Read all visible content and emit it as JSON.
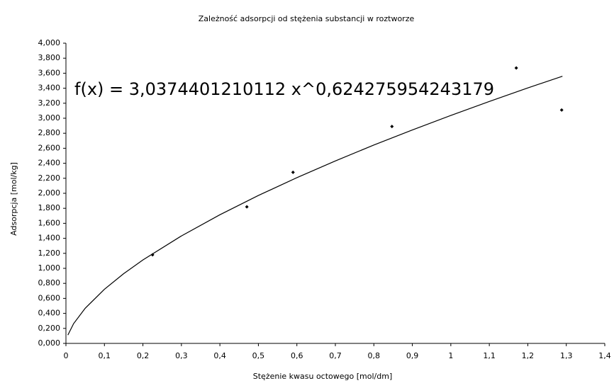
{
  "chart_data": {
    "type": "scatter",
    "title": "Zależność adsorpcji od stężenia substancji w roztworze",
    "xlabel": "Stężenie kwasu octowego [mol/dm]",
    "ylabel": "Adsorpcja [mol/kg]",
    "annotation": "f(x) = 3,0374401210112 x^0,624275954243179",
    "xlim": [
      0,
      1.4
    ],
    "ylim": [
      0,
      4
    ],
    "xticks": [
      0,
      {
        "value": 0.1,
        "label": "0,1"
      },
      {
        "value": 0.2,
        "label": "0,2"
      },
      {
        "value": 0.3,
        "label": "0,3"
      },
      {
        "value": 0.4,
        "label": "0,4"
      },
      {
        "value": 0.5,
        "label": "0,5"
      },
      {
        "value": 0.6,
        "label": "0,6"
      },
      {
        "value": 0.7,
        "label": "0,7"
      },
      {
        "value": 0.8,
        "label": "0,8"
      },
      {
        "value": 0.9,
        "label": "0,9"
      },
      1,
      {
        "value": 1.1,
        "label": "1,1"
      },
      {
        "value": 1.2,
        "label": "1,2"
      },
      {
        "value": 1.3,
        "label": "1,3"
      },
      {
        "value": 1.4,
        "label": "1,4"
      }
    ],
    "yticks": [
      {
        "value": 0,
        "label": "0,000"
      },
      {
        "value": 0.2,
        "label": "0,200"
      },
      {
        "value": 0.4,
        "label": "0,400"
      },
      {
        "value": 0.6,
        "label": "0,600"
      },
      {
        "value": 0.8,
        "label": "0,800"
      },
      {
        "value": 1,
        "label": "1,000"
      },
      {
        "value": 1.2,
        "label": "1,200"
      },
      {
        "value": 1.4,
        "label": "1,400"
      },
      {
        "value": 1.6,
        "label": "1,600"
      },
      {
        "value": 1.8,
        "label": "1,800"
      },
      {
        "value": 2,
        "label": "2,000"
      },
      {
        "value": 2.2,
        "label": "2,200"
      },
      {
        "value": 2.4,
        "label": "2,400"
      },
      {
        "value": 2.6,
        "label": "2,600"
      },
      {
        "value": 2.8,
        "label": "2,800"
      },
      {
        "value": 3,
        "label": "3,000"
      },
      {
        "value": 3.2,
        "label": "3,200"
      },
      {
        "value": 3.4,
        "label": "3,400"
      },
      {
        "value": 3.6,
        "label": "3,600"
      },
      {
        "value": 3.8,
        "label": "3,800"
      },
      {
        "value": 4,
        "label": "4,000"
      }
    ],
    "grid": false,
    "series": [
      {
        "kind": "points",
        "color": "#000000",
        "x": [
          0.225,
          0.47,
          0.59,
          0.847,
          1.17,
          1.288
        ],
        "values": [
          1.18,
          1.82,
          2.28,
          2.89,
          3.67,
          3.11
        ]
      },
      {
        "kind": "trendline",
        "color": "#000000",
        "x": [
          0.005,
          0.02,
          0.05,
          0.1,
          0.15,
          0.2,
          0.3,
          0.4,
          0.5,
          0.6,
          0.7,
          0.8,
          0.9,
          1.0,
          1.1,
          1.2,
          1.29
        ],
        "values": [
          0.111,
          0.264,
          0.468,
          0.721,
          0.929,
          1.112,
          1.432,
          1.714,
          1.971,
          2.208,
          2.431,
          2.643,
          2.844,
          3.037,
          3.224,
          3.404,
          3.56
        ]
      }
    ]
  }
}
